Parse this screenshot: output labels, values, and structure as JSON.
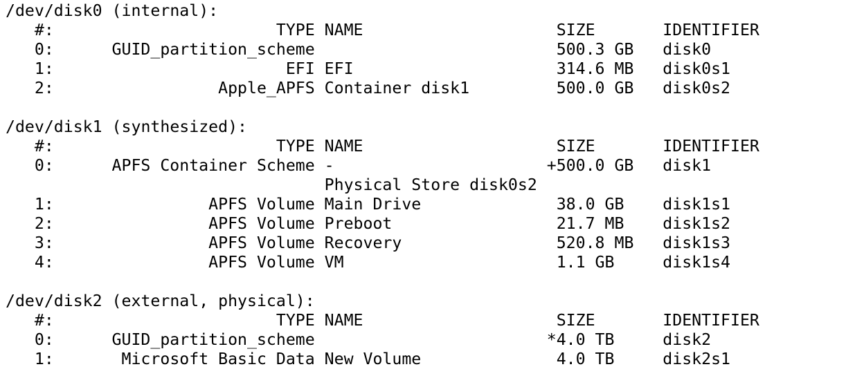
{
  "columns": {
    "num": "#:",
    "type": "TYPE",
    "name": "NAME",
    "size": "SIZE",
    "identifier": "IDENTIFIER"
  },
  "disks": [
    {
      "header": "/dev/disk0 (internal):",
      "partitions": [
        {
          "num": "0:",
          "type": "GUID_partition_scheme",
          "name": "",
          "size": "500.3 GB",
          "identifier": "disk0"
        },
        {
          "num": "1:",
          "type": "EFI",
          "name": "EFI",
          "size": "314.6 MB",
          "identifier": "disk0s1"
        },
        {
          "num": "2:",
          "type": "Apple_APFS",
          "name": "Container disk1",
          "size": "500.0 GB",
          "identifier": "disk0s2"
        }
      ]
    },
    {
      "header": "/dev/disk1 (synthesized):",
      "partitions": [
        {
          "num": "0:",
          "type": "APFS Container Scheme",
          "name": "-",
          "size": "+500.0 GB",
          "identifier": "disk1",
          "extra": "Physical Store disk0s2"
        },
        {
          "num": "1:",
          "type": "APFS Volume",
          "name": "Main Drive",
          "size": "38.0 GB",
          "identifier": "disk1s1"
        },
        {
          "num": "2:",
          "type": "APFS Volume",
          "name": "Preboot",
          "size": "21.7 MB",
          "identifier": "disk1s2"
        },
        {
          "num": "3:",
          "type": "APFS Volume",
          "name": "Recovery",
          "size": "520.8 MB",
          "identifier": "disk1s3"
        },
        {
          "num": "4:",
          "type": "APFS Volume",
          "name": "VM",
          "size": "1.1 GB",
          "identifier": "disk1s4"
        }
      ]
    },
    {
      "header": "/dev/disk2 (external, physical):",
      "partitions": [
        {
          "num": "0:",
          "type": "GUID_partition_scheme",
          "name": "",
          "size": "*4.0 TB",
          "identifier": "disk2"
        },
        {
          "num": "1:",
          "type": "Microsoft Basic Data",
          "name": "New Volume",
          "size": "4.0 TB",
          "identifier": "disk2s1"
        }
      ]
    }
  ]
}
